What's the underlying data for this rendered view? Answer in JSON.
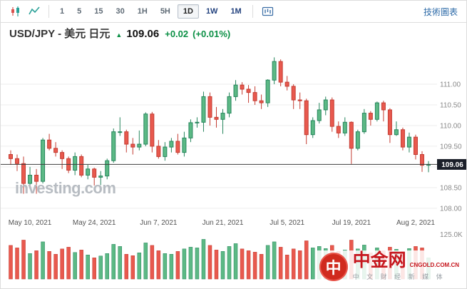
{
  "toolbar": {
    "intervals": [
      "1",
      "5",
      "15",
      "30",
      "1H",
      "5H",
      "1D",
      "1W",
      "1M"
    ],
    "major_intervals": [
      "1D",
      "1W",
      "1M"
    ],
    "selected_interval": "1D",
    "tech_chart_link": "技術圖表"
  },
  "header": {
    "symbol": "USD/JPY - 美元 日元",
    "up_arrow": "▲",
    "price": "109.06",
    "change": "+0.02",
    "change_pct": "(+0.01%)"
  },
  "watermark": "investing.com",
  "logo": {
    "icon_char": "中",
    "name": "中金网",
    "domain": "CNGOLD.COM.CN",
    "tagline": "中 文 财 经 新 媒 体"
  },
  "chart_data": {
    "type": "candlestick",
    "title": "USD/JPY daily candlestick chart with volume",
    "x_labels": [
      "May 10, 2021",
      "May 24, 2021",
      "Jun 7, 2021",
      "Jun 21, 2021",
      "Jul 5, 2021",
      "Jul 19, 2021",
      "Aug 2, 2021"
    ],
    "x_label_indices": [
      3,
      13,
      23,
      33,
      43,
      53,
      63
    ],
    "y_ticks": [
      "111.00",
      "110.50",
      "110.00",
      "109.50",
      "109.00",
      "108.50",
      "108.00"
    ],
    "price_axis": {
      "max": 111.95,
      "min": 107.6
    },
    "last_price": 109.06,
    "last_price_label": "109.06",
    "volume_axis_label": "125.0K",
    "volume_axis_max": 125,
    "colors": {
      "up": "#27865d",
      "up_fill": "#5cb985",
      "down": "#c43d33",
      "down_fill": "#e8594e",
      "grid": "#eeeeee",
      "last_price_line": "#3c3c3c",
      "badge_bg": "#1b1f29"
    },
    "candles": [
      [
        109.3,
        109.4,
        109.05,
        109.2
      ],
      [
        109.2,
        109.3,
        108.9,
        109.08
      ],
      [
        109.08,
        109.25,
        108.35,
        108.6
      ],
      [
        108.6,
        109.0,
        108.55,
        108.8
      ],
      [
        108.8,
        108.95,
        108.35,
        108.65
      ],
      [
        108.65,
        109.7,
        108.6,
        109.65
      ],
      [
        109.65,
        109.8,
        109.4,
        109.45
      ],
      [
        109.45,
        109.6,
        109.25,
        109.35
      ],
      [
        109.35,
        109.4,
        108.95,
        109.2
      ],
      [
        109.2,
        109.25,
        108.85,
        108.92
      ],
      [
        108.92,
        109.35,
        108.8,
        109.25
      ],
      [
        109.25,
        109.3,
        108.75,
        108.8
      ],
      [
        108.8,
        109.05,
        108.7,
        108.95
      ],
      [
        108.95,
        108.98,
        108.55,
        108.75
      ],
      [
        108.75,
        108.9,
        108.56,
        108.78
      ],
      [
        108.78,
        109.2,
        108.7,
        109.15
      ],
      [
        109.15,
        109.93,
        109.1,
        109.85
      ],
      [
        109.85,
        110.2,
        109.75,
        109.85
      ],
      [
        109.85,
        109.9,
        109.35,
        109.55
      ],
      [
        109.55,
        109.7,
        109.3,
        109.48
      ],
      [
        109.48,
        109.88,
        109.4,
        109.55
      ],
      [
        109.55,
        110.32,
        109.5,
        110.28
      ],
      [
        110.28,
        110.33,
        109.35,
        109.5
      ],
      [
        109.5,
        109.65,
        109.2,
        109.25
      ],
      [
        109.25,
        109.6,
        109.15,
        109.48
      ],
      [
        109.48,
        109.7,
        109.35,
        109.62
      ],
      [
        109.62,
        109.8,
        109.3,
        109.35
      ],
      [
        109.35,
        109.85,
        109.25,
        109.7
      ],
      [
        109.7,
        110.15,
        109.6,
        110.07
      ],
      [
        110.07,
        110.2,
        109.95,
        110.08
      ],
      [
        110.08,
        110.82,
        109.85,
        110.7
      ],
      [
        110.7,
        110.8,
        110.0,
        110.2
      ],
      [
        110.2,
        110.45,
        109.95,
        110.15
      ],
      [
        110.15,
        110.4,
        109.8,
        110.3
      ],
      [
        110.3,
        110.8,
        110.2,
        110.7
      ],
      [
        110.7,
        111.1,
        110.6,
        110.98
      ],
      [
        110.98,
        111.05,
        110.75,
        110.88
      ],
      [
        110.88,
        110.98,
        110.55,
        110.8
      ],
      [
        110.8,
        110.95,
        110.5,
        110.6
      ],
      [
        110.6,
        110.75,
        110.4,
        110.55
      ],
      [
        110.55,
        111.12,
        110.45,
        111.1
      ],
      [
        111.1,
        111.65,
        111.0,
        111.55
      ],
      [
        111.55,
        111.6,
        110.95,
        111.05
      ],
      [
        111.05,
        111.2,
        110.85,
        110.95
      ],
      [
        110.95,
        111.0,
        110.4,
        110.62
      ],
      [
        110.62,
        110.8,
        110.4,
        110.6
      ],
      [
        110.6,
        110.65,
        109.55,
        109.78
      ],
      [
        109.78,
        110.2,
        109.7,
        110.12
      ],
      [
        110.12,
        110.55,
        110.05,
        110.38
      ],
      [
        110.38,
        110.7,
        110.25,
        110.62
      ],
      [
        110.62,
        110.68,
        109.85,
        109.98
      ],
      [
        109.98,
        110.1,
        109.7,
        109.82
      ],
      [
        109.82,
        110.2,
        109.75,
        110.08
      ],
      [
        110.08,
        110.1,
        109.07,
        109.45
      ],
      [
        109.45,
        109.9,
        109.4,
        109.85
      ],
      [
        109.85,
        110.4,
        109.8,
        110.3
      ],
      [
        110.3,
        110.35,
        110.0,
        110.15
      ],
      [
        110.15,
        110.58,
        110.1,
        110.55
      ],
      [
        110.55,
        110.6,
        110.1,
        110.38
      ],
      [
        110.38,
        110.42,
        109.58,
        109.78
      ],
      [
        109.78,
        110.1,
        109.75,
        109.9
      ],
      [
        109.9,
        109.95,
        109.4,
        109.48
      ],
      [
        109.48,
        109.83,
        109.35,
        109.72
      ],
      [
        109.72,
        109.78,
        109.18,
        109.3
      ],
      [
        109.3,
        109.38,
        108.88,
        109.04
      ],
      [
        109.04,
        109.14,
        108.87,
        109.06
      ]
    ],
    "volumes": [
      95,
      88,
      110,
      72,
      80,
      105,
      78,
      70,
      85,
      90,
      75,
      82,
      68,
      60,
      65,
      72,
      98,
      92,
      70,
      66,
      74,
      102,
      95,
      80,
      72,
      70,
      78,
      85,
      90,
      88,
      112,
      95,
      82,
      78,
      92,
      100,
      85,
      80,
      76,
      70,
      95,
      105,
      90,
      68,
      85,
      80,
      108,
      88,
      92,
      86,
      95,
      78,
      82,
      110,
      85,
      96,
      74,
      88,
      80,
      90,
      84,
      78,
      86,
      92,
      88,
      60
    ]
  }
}
